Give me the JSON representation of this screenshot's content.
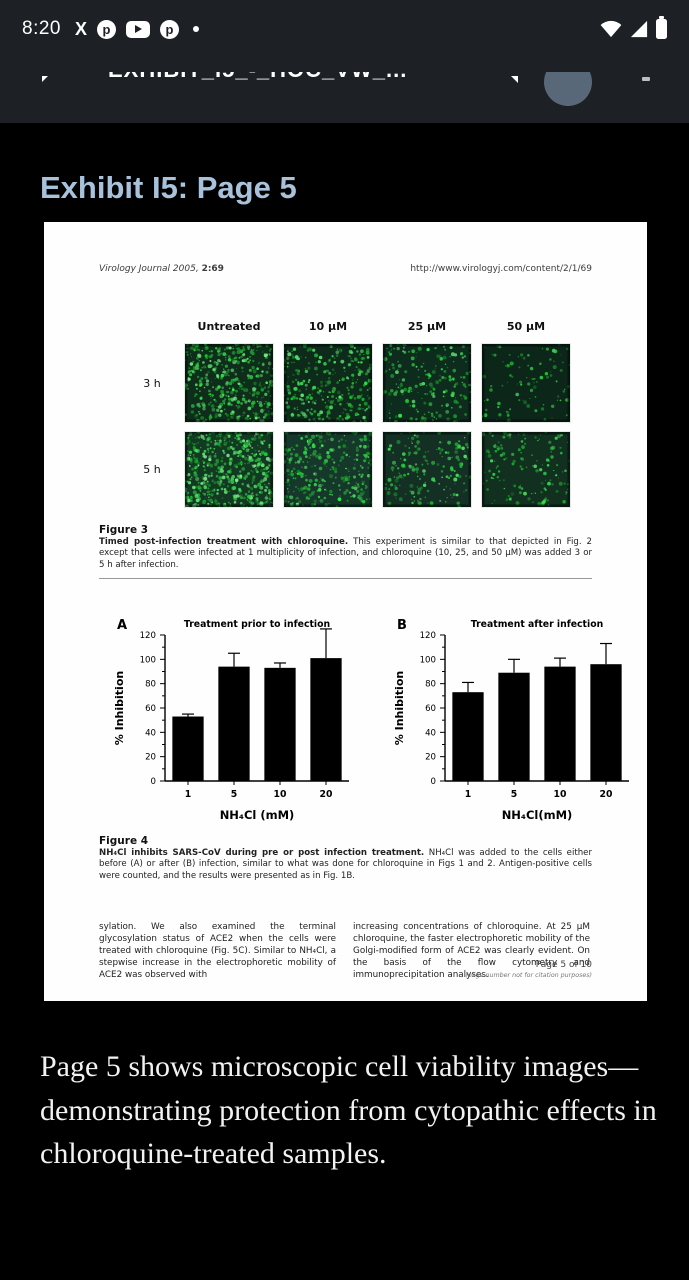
{
  "status_bar": {
    "time": "8:20",
    "notification_icons": [
      "x-logo",
      "pinterest",
      "youtube",
      "pinterest",
      "notification-dot"
    ],
    "system_icons": [
      "wifi",
      "cell-signal",
      "battery"
    ]
  },
  "app_bar": {
    "clipped_title": "EXHIBIT_I5_-_HOC_VW_..."
  },
  "exhibit_heading": "Exhibit I5: Page 5",
  "document": {
    "journal_italic": "Virology Journal",
    "journal_rest": " 2005, ",
    "journal_bold": "2:69",
    "url": "http://www.virologyj.com/content/2/1/69",
    "figure3": {
      "col_headers": [
        "Untreated",
        "10 µM",
        "25 µM",
        "50 µM"
      ],
      "row_labels": [
        "3 h",
        "5 h"
      ],
      "images": [
        {
          "row": "3 h",
          "col": "Untreated",
          "dots": 430,
          "bright": 1.0,
          "bg": "#0e2d1a",
          "h": 78
        },
        {
          "row": "3 h",
          "col": "10 µM",
          "dots": 300,
          "bright": 0.9,
          "bg": "#0d2a1b",
          "h": 78
        },
        {
          "row": "3 h",
          "col": "25 µM",
          "dots": 205,
          "bright": 0.85,
          "bg": "#0e2c1e",
          "h": 78
        },
        {
          "row": "3 h",
          "col": "50 µM",
          "dots": 95,
          "bright": 0.62,
          "bg": "#0c2619",
          "h": 78
        },
        {
          "row": "5 h",
          "col": "Untreated",
          "dots": 520,
          "bright": 1.1,
          "bg": "#123a22",
          "h": 75
        },
        {
          "row": "5 h",
          "col": "10 µM",
          "dots": 290,
          "bright": 0.85,
          "bg": "#16382b",
          "h": 75
        },
        {
          "row": "5 h",
          "col": "25 µM",
          "dots": 175,
          "bright": 0.8,
          "bg": "#143024",
          "h": 75
        },
        {
          "row": "5 h",
          "col": "50 µM",
          "dots": 135,
          "bright": 0.75,
          "bg": "#12301f",
          "h": 75
        }
      ],
      "caption_title": "Figure 3",
      "caption_bold": "Timed post-infection treatment with chloroquine.",
      "caption_text": " This experiment is similar to that depicted in Fig. 2 except that cells were infected at 1 multiplicity of infection, and chloroquine (10, 25, and 50 µM) was added 3 or 5 h after infection."
    },
    "figure4": {
      "caption_title": "Figure 4",
      "caption_bold": "NH₄Cl inhibits SARS-CoV during pre or post infection treatment.",
      "caption_text": " NH₄Cl was added to the cells either before (A) or after (B) infection, similar to what was done for chloroquine in Figs 1 and 2. Antigen-positive cells were counted, and the results were presented as in Fig. 1B."
    },
    "body_columns": [
      "sylation. We also examined the terminal glycosylation status of ACE2 when the cells were treated with chloroquine (Fig. 5C). Similar to NH₄Cl, a stepwise increase in the electrophoretic mobility of ACE2 was observed with",
      "increasing concentrations of chloroquine. At 25 µM chloroquine, the faster electrophoretic mobility of the Golgi-modified form of ACE2 was clearly evident. On the basis of the flow cytometry and immunoprecipitation analyses."
    ],
    "footer_page": "Page 5 of 10",
    "footer_note": "(page number not for citation purposes)"
  },
  "chart_data": [
    {
      "type": "bar",
      "panel": "A",
      "title": "Treatment prior to infection",
      "categories": [
        "1",
        "5",
        "10",
        "20"
      ],
      "values": [
        53,
        94,
        93,
        101
      ],
      "errors_up": [
        2,
        11,
        4,
        24
      ],
      "xlabel": "NH₄Cl (mM)",
      "ylabel": "% Inhibition",
      "ylim": [
        0,
        120
      ],
      "ytick_major": 20,
      "ytick_minor": 10,
      "bar_color": "#000000",
      "grid": false,
      "legend": "none"
    },
    {
      "type": "bar",
      "panel": "B",
      "title": "Treatment after infection",
      "categories": [
        "1",
        "5",
        "10",
        "20"
      ],
      "values": [
        73,
        89,
        94,
        96
      ],
      "errors_up": [
        8,
        11,
        7,
        17
      ],
      "xlabel": "NH₄Cl(mM)",
      "ylabel": "% Inhibition",
      "ylim": [
        0,
        120
      ],
      "ytick_major": 20,
      "ytick_minor": 10,
      "bar_color": "#000000",
      "grid": false,
      "legend": "none"
    }
  ],
  "bottom_caption": "Page 5 shows microscopic cell viability images—demonstrating protection from cytopathic effects in chloroquine-treated samples."
}
